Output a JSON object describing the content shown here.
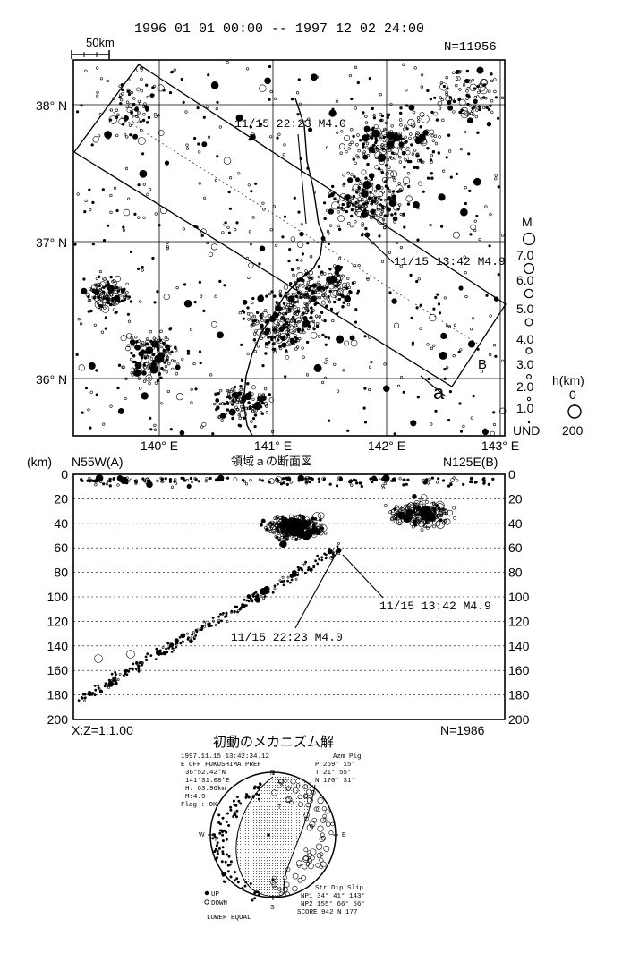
{
  "header": {
    "period": "1996 01 01 00:00 -- 1997 12 02 24:00",
    "count": "N=11956",
    "scale_label": "50km"
  },
  "map": {
    "lat_labels": [
      "38° N",
      "37° N",
      "36° N"
    ],
    "lon_labels": [
      "140° E",
      "141° E",
      "142° E",
      "143° E"
    ],
    "annotations": [
      "11/15 22:23 M4.0",
      "11/15 13:42 M4.9"
    ],
    "profile_start": "A",
    "profile_end": "B",
    "region": "a"
  },
  "legend": {
    "m_title": "M",
    "m_values": [
      "7.0",
      "6.0",
      "5.0",
      "4.0",
      "3.0",
      "2.0",
      "1.0",
      "UND"
    ],
    "h_title": "h(km)",
    "h_values": [
      "0",
      "200"
    ]
  },
  "section": {
    "unit": "(km)",
    "left_label": "N55W(A)",
    "title": "領域ａの断面図",
    "right_label": "N125E(B)",
    "depth_ticks": [
      "0",
      "20",
      "40",
      "60",
      "80",
      "100",
      "120",
      "140",
      "160",
      "180",
      "200"
    ],
    "annotations": [
      "11/15 13:42 M4.9",
      "11/15 22:23 M4.0"
    ],
    "ratio": "X:Z=1:1.00",
    "count": "N=1986"
  },
  "mechanism": {
    "title": "初動のメカニズム解",
    "info_lines": [
      "1997.11.15   13:42:34.12",
      "E OFF FUKUSHIMA PREF",
      "36°52.42'N",
      "141°31.08'E",
      "H: 63.96km",
      "M:4.9",
      "Flag : OK"
    ],
    "axes_header": "Azm Plg",
    "axes": [
      "P   269°  15°",
      "T    21°  55°",
      "N   170°  31°"
    ],
    "dir_labels": [
      "N",
      "E",
      "S",
      "W",
      "T",
      "P"
    ],
    "polarity": [
      "UP",
      "DOWN"
    ],
    "projection": "LOWER EQUAL",
    "planes_header": "Str Dip Slip",
    "planes": [
      "NP1   34°  41°  143°",
      "NP2  155°  66°   56°"
    ],
    "score": "SCORE  942   N 177"
  }
}
